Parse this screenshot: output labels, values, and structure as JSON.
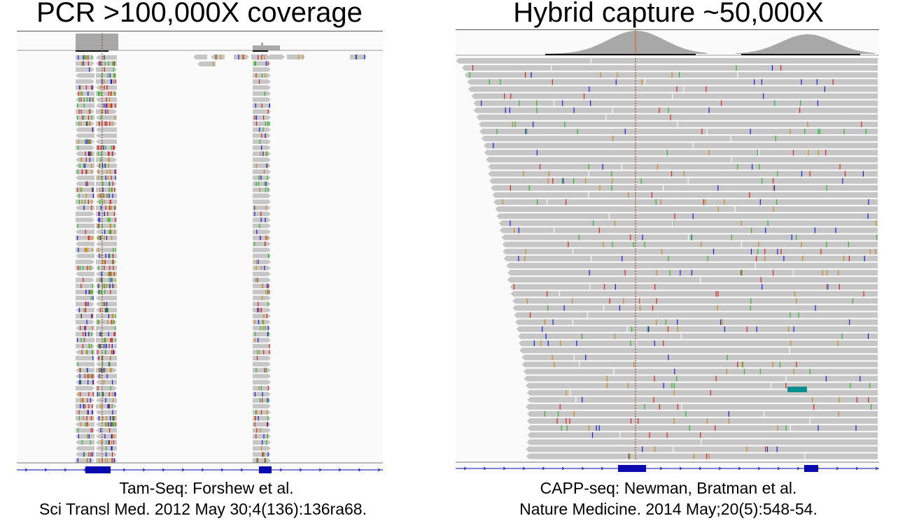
{
  "left_panel": {
    "title": "PCR >100,000X coverage",
    "caption_line1": "Tam-Seq: Forshew et al.",
    "caption_line2": "Sci Transl Med. 2012 May 30;4(136):136ra68.",
    "read_color": "#c6c6c6",
    "coverage_color": "#a8a8a8"
  },
  "right_panel": {
    "title": "Hybrid capture ~50,000X",
    "caption_line1": "CAPP-seq: Newman, Bratman et al.",
    "caption_line2": "Nature Medicine. 2014 May;20(5):548-54.",
    "read_color": "#c6c6c6",
    "coverage_color": "#a8a8a8"
  },
  "colors": {
    "mismatch_a": "#2db52d",
    "mismatch_c": "#1a1ad6",
    "mismatch_g": "#c98a1a",
    "mismatch_t": "#d62020",
    "gene_feature": "#0a0ab0",
    "insertion_block": "#0a8f8f",
    "center_line": "#7a3a10"
  }
}
